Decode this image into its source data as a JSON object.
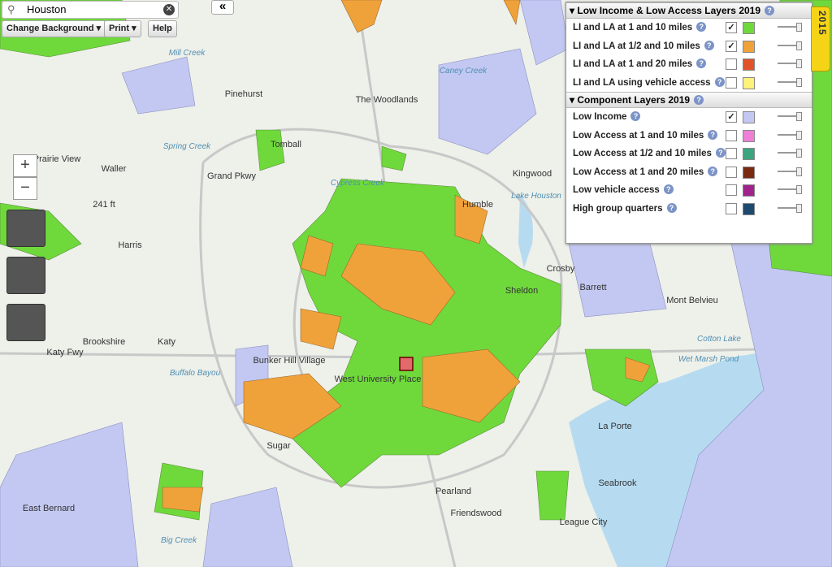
{
  "search": {
    "value": "Houston"
  },
  "toolbar": {
    "collapse": "«",
    "buttons": [
      "Change Background",
      "Print",
      "Help"
    ]
  },
  "zoom": {
    "in": "+",
    "out": "−"
  },
  "panel": {
    "tab": "2015",
    "help_icon": "?",
    "sections": [
      {
        "title": "Low Income & Low Access Layers 2019",
        "layers": [
          {
            "label": "LI and LA at 1 and 10 miles",
            "checked": true,
            "color": "#6fd93c"
          },
          {
            "label": "LI and LA at 1/2 and 10 miles",
            "checked": true,
            "color": "#f0a23a"
          },
          {
            "label": "LI and LA at 1 and 20 miles",
            "checked": false,
            "color": "#e0522a"
          },
          {
            "label": "LI and LA using vehicle access",
            "checked": false,
            "color": "#fff27a"
          }
        ]
      },
      {
        "title": "Component Layers 2019",
        "layers": [
          {
            "label": "Low Income",
            "checked": true,
            "color": "#c3c8f2"
          },
          {
            "label": "Low Access at 1 and 10 miles",
            "checked": false,
            "color": "#ee7fd6"
          },
          {
            "label": "Low Access at 1/2 and 10 miles",
            "checked": false,
            "color": "#3aa57e"
          },
          {
            "label": "Low Access at 1 and 20 miles",
            "checked": false,
            "color": "#7a2a12"
          },
          {
            "label": "Low vehicle access",
            "checked": false,
            "color": "#a0238c"
          },
          {
            "label": "High group quarters",
            "checked": false,
            "color": "#1d4a6e"
          }
        ]
      }
    ]
  },
  "map": {
    "labels": [
      "Tomball",
      "Prairie View",
      "Waller",
      "Pinehurst",
      "The Woodlands",
      "Kingwood",
      "Humble",
      "Lake Houston",
      "Katy",
      "Brookshire",
      "Bunker Hill Village",
      "West University Place",
      "Sheldon",
      "Crosby",
      "Barrett",
      "Mont Belvieu",
      "Cotton Lake",
      "Wet Marsh Pond",
      "La Porte",
      "Seabrook",
      "Pearland",
      "Friendswood",
      "League City",
      "East Bernard",
      "Harris",
      "241 ft",
      "Spring Creek",
      "Cypress Creek",
      "Buffalo Bayou",
      "Mill Creek",
      "Caney Creek",
      "Big Creek",
      "Katy Fwy",
      "Grand Pkwy",
      "Sugar"
    ]
  }
}
